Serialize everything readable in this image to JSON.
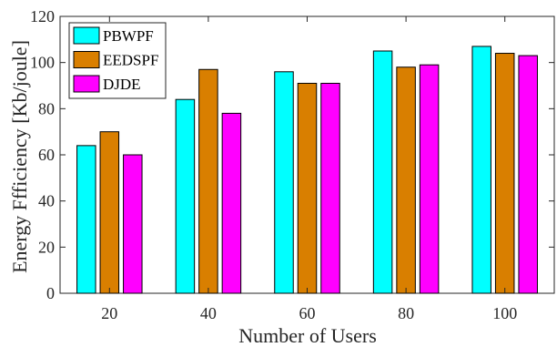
{
  "chart_data": {
    "type": "bar",
    "title": "",
    "xlabel": "Number of Users",
    "ylabel": "Energy Ffficiency [Kb/joule]",
    "categories": [
      "20",
      "40",
      "60",
      "80",
      "100"
    ],
    "ylim": [
      0,
      120
    ],
    "yticks": [
      "0",
      "20",
      "40",
      "60",
      "80",
      "100",
      "120"
    ],
    "grid": false,
    "legend_position": "top-left",
    "series": [
      {
        "name": "PBWPF",
        "color": "#00ffff",
        "values": [
          64,
          84,
          96,
          105,
          107
        ]
      },
      {
        "name": "EEDSPF",
        "color": "#d97f00",
        "values": [
          70,
          97,
          91,
          98,
          104
        ]
      },
      {
        "name": "DJDE",
        "color": "#ff00ff",
        "values": [
          60,
          78,
          91,
          99,
          103
        ]
      }
    ]
  }
}
